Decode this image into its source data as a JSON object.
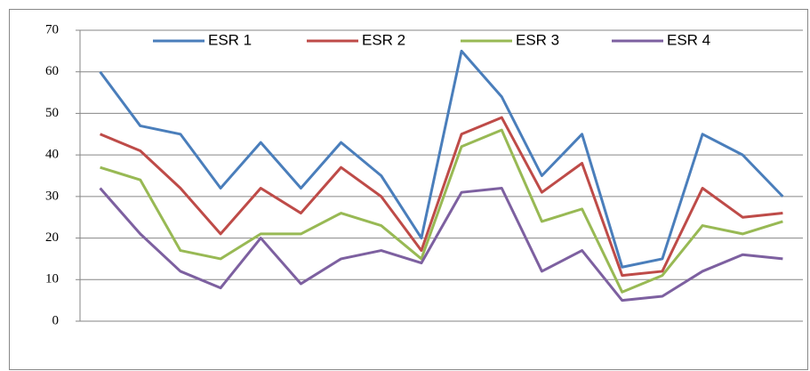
{
  "chart_data": {
    "type": "line",
    "categories": [
      null,
      null,
      null,
      null,
      null,
      null,
      null,
      null,
      null,
      null,
      null,
      null,
      null,
      null,
      null,
      null,
      null,
      null
    ],
    "series": [
      {
        "name": "ESR 1",
        "color": "#4a7ebb",
        "values": [
          60,
          47,
          45,
          32,
          43,
          32,
          43,
          35,
          20,
          65,
          54,
          35,
          45,
          13,
          15,
          45,
          40,
          30
        ]
      },
      {
        "name": "ESR 2",
        "color": "#be4b48",
        "values": [
          45,
          41,
          32,
          21,
          32,
          26,
          37,
          30,
          17,
          45,
          49,
          31,
          38,
          11,
          12,
          32,
          25,
          26
        ]
      },
      {
        "name": "ESR 3",
        "color": "#98b954",
        "values": [
          37,
          34,
          17,
          15,
          21,
          21,
          26,
          23,
          15,
          42,
          46,
          24,
          27,
          7,
          11,
          23,
          21,
          24
        ]
      },
      {
        "name": "ESR 4",
        "color": "#7d60a0",
        "values": [
          32,
          21,
          12,
          8,
          20,
          9,
          15,
          17,
          14,
          31,
          32,
          12,
          17,
          5,
          6,
          12,
          16,
          15
        ]
      }
    ],
    "ylim": [
      0,
      70
    ],
    "yticks": [
      0,
      10,
      20,
      30,
      40,
      50,
      60,
      70
    ],
    "grid": true,
    "legend": "top"
  }
}
